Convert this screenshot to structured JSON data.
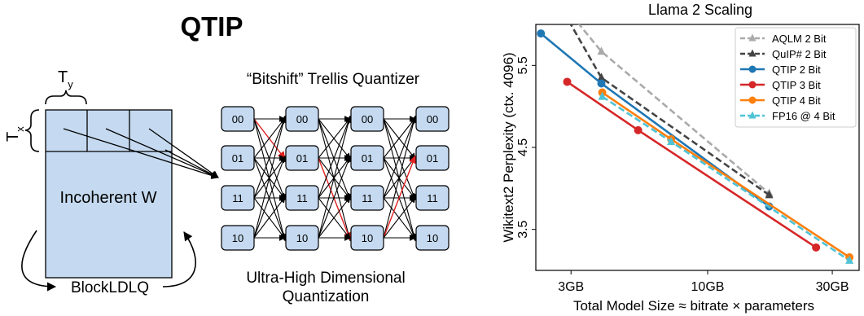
{
  "diagram": {
    "title": "QTIP",
    "ty_label": "T",
    "ty_sub": "y",
    "tx_label": "T",
    "tx_sub": "x",
    "matrix_label": "Incoherent W",
    "loop_label": "BlockLDLQ",
    "trellis_title": "“Bitshift” Trellis Quantizer",
    "states": [
      "00",
      "01",
      "11",
      "10"
    ],
    "caption_line1": "Ultra-High Dimensional",
    "caption_line2": "Quantization",
    "colors": {
      "box_fill": "#c5daf0",
      "edge": "#000000",
      "path": "#e02020"
    }
  },
  "chart_data": {
    "type": "line",
    "title": "Llama 2 Scaling",
    "xlabel": "Total Model Size ≈ bitrate × parameters",
    "ylabel": "Wikitext2 Perplexity (ctx. 4096)",
    "xscale": "log",
    "xlim": [
      2.2,
      38
    ],
    "ylim": [
      3.0,
      6.0
    ],
    "xticks": [
      3,
      10,
      30
    ],
    "xtick_labels": [
      "3GB",
      "10GB",
      "30GB"
    ],
    "yticks": [
      3.5,
      4.5,
      5.5
    ],
    "ytick_labels": [
      "3.5",
      "4.5",
      "5.5"
    ],
    "grid": false,
    "legend_position": "top-right",
    "series": [
      {
        "name": "AQLM 2 Bit",
        "color": "#aaaaaa",
        "dash": true,
        "marker": "triangle",
        "x": [
          2.7,
          3.92,
          17.2
        ],
        "y": [
          6.3,
          5.67,
          3.94
        ]
      },
      {
        "name": "QuIP# 2 Bit",
        "color": "#444444",
        "dash": true,
        "marker": "triangle",
        "x": [
          2.7,
          3.92,
          17.2
        ],
        "y": [
          6.25,
          5.35,
          3.92
        ]
      },
      {
        "name": "QTIP 2 Bit",
        "color": "#1f77b4",
        "dash": false,
        "marker": "circle",
        "x": [
          2.3,
          3.92,
          17.2
        ],
        "y": [
          5.89,
          5.28,
          3.78
        ]
      },
      {
        "name": "QTIP 3 Bit",
        "color": "#d62728",
        "dash": false,
        "marker": "circle",
        "x": [
          2.9,
          5.42,
          26.0
        ],
        "y": [
          5.3,
          4.71,
          3.28
        ]
      },
      {
        "name": "QTIP 4 Bit",
        "color": "#ff7f0e",
        "dash": false,
        "marker": "circle",
        "x": [
          3.95,
          7.25,
          34.9
        ],
        "y": [
          5.17,
          4.6,
          3.16
        ]
      },
      {
        "name": "FP16 @ 4 Bit",
        "color": "#4fc3d6",
        "dash": true,
        "marker": "triangle",
        "x": [
          3.95,
          7.25,
          34.9
        ],
        "y": [
          5.12,
          4.57,
          3.12
        ]
      }
    ]
  }
}
